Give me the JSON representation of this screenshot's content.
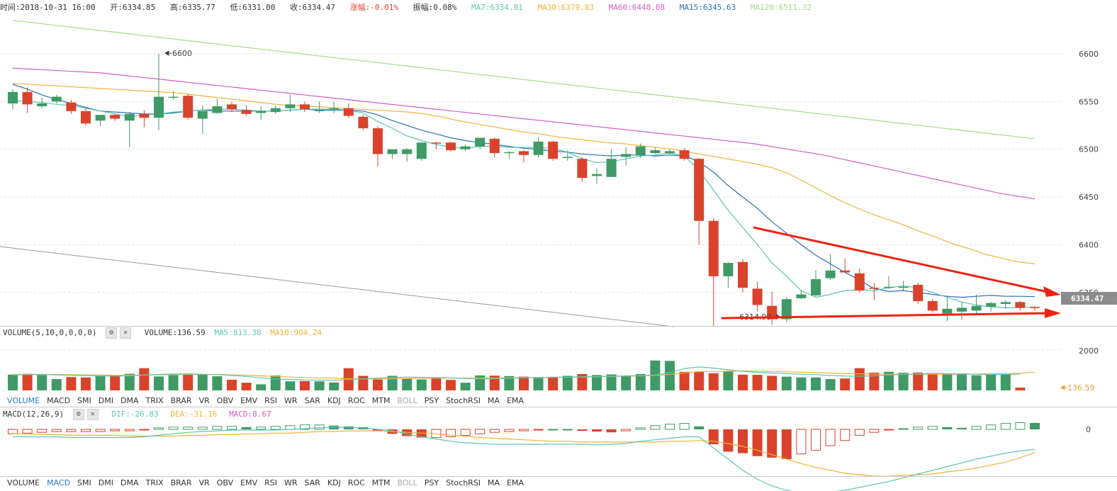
{
  "info": {
    "time": "时间:2018-10-31 16:00",
    "open": "开:6334.85",
    "high": "高:6335.77",
    "low": "低:6331.00",
    "close": "收:6334.47",
    "change": "涨幅:-0.01%",
    "amplitude": "振幅:0.08%",
    "ma7": "MA7:6334.81",
    "ma30": "MA30:6379.83",
    "ma60": "MA60:6448.08",
    "ma15": "MA15:6345.63",
    "ma120": "MA120:6511.32"
  },
  "colors": {
    "up": "#3f9a65",
    "down": "#d9432c",
    "ma7": "#5bc6b4",
    "ma15": "#2e6fb0",
    "ma30": "#f0b23a",
    "ma60": "#d45fbd",
    "ma120": "#a9d78f",
    "annotation": "#ee2211"
  },
  "price_axis": {
    "ticks": [
      "6600",
      "6550",
      "6500",
      "6450",
      "6400",
      "6350"
    ],
    "current": "6334.47"
  },
  "annotations": {
    "high": "6600",
    "low": "6314.99"
  },
  "volume": {
    "header": "VOLUME(5,10,0,0,0,0)",
    "value": "VOLUME:136.59",
    "ma5": "MA5:813.38",
    "ma10": "MA10:904.24",
    "tick": "2000",
    "current": "136.59"
  },
  "macd": {
    "header": "MACD(12,26,9)",
    "dif": "DIF:-26.83",
    "dea": "DEA:-31.16",
    "macd": "MACD:8.67",
    "tick": "0"
  },
  "tabs_volume": [
    "VOLUME",
    "MACD",
    "SMI",
    "DMI",
    "DMA",
    "TRIX",
    "BRAR",
    "VR",
    "OBV",
    "EMV",
    "RSI",
    "WR",
    "SAR",
    "KDJ",
    "ROC",
    "MTM",
    "BOLL",
    "PSY",
    "StochRSI",
    "MA",
    "EMA"
  ],
  "tabs_macd": [
    "VOLUME",
    "MACD",
    "SMI",
    "DMI",
    "DMA",
    "TRIX",
    "BRAR",
    "VR",
    "OBV",
    "EMV",
    "RSI",
    "WR",
    "SAR",
    "KDJ",
    "ROC",
    "MTM",
    "BOLL",
    "PSY",
    "StochRSI",
    "MA",
    "EMA"
  ],
  "chart_data": {
    "type": "candlestick",
    "ylim": [
      6315,
      6640
    ],
    "candles": [
      {
        "o": 6548,
        "h": 6563,
        "l": 6542,
        "c": 6560
      },
      {
        "o": 6560,
        "h": 6565,
        "l": 6538,
        "c": 6547
      },
      {
        "o": 6545,
        "h": 6554,
        "l": 6543,
        "c": 6548
      },
      {
        "o": 6550,
        "h": 6557,
        "l": 6548,
        "c": 6555
      },
      {
        "o": 6549,
        "h": 6552,
        "l": 6537,
        "c": 6540
      },
      {
        "o": 6540,
        "h": 6543,
        "l": 6525,
        "c": 6527
      },
      {
        "o": 6530,
        "h": 6536,
        "l": 6524,
        "c": 6536
      },
      {
        "o": 6536,
        "h": 6537,
        "l": 6530,
        "c": 6532
      },
      {
        "o": 6530,
        "h": 6539,
        "l": 6502,
        "c": 6537
      },
      {
        "o": 6537,
        "h": 6541,
        "l": 6523,
        "c": 6533
      },
      {
        "o": 6533,
        "h": 6600,
        "l": 6520,
        "c": 6555
      },
      {
        "o": 6555,
        "h": 6561,
        "l": 6552,
        "c": 6555
      },
      {
        "o": 6556,
        "h": 6558,
        "l": 6531,
        "c": 6533
      },
      {
        "o": 6532,
        "h": 6546,
        "l": 6516,
        "c": 6540
      },
      {
        "o": 6538,
        "h": 6553,
        "l": 6537,
        "c": 6545
      },
      {
        "o": 6547,
        "h": 6550,
        "l": 6539,
        "c": 6542
      },
      {
        "o": 6541,
        "h": 6546,
        "l": 6535,
        "c": 6537
      },
      {
        "o": 6538,
        "h": 6545,
        "l": 6531,
        "c": 6540
      },
      {
        "o": 6539,
        "h": 6546,
        "l": 6537,
        "c": 6543
      },
      {
        "o": 6543,
        "h": 6557,
        "l": 6539,
        "c": 6547
      },
      {
        "o": 6547,
        "h": 6550,
        "l": 6539,
        "c": 6542
      },
      {
        "o": 6540,
        "h": 6550,
        "l": 6538,
        "c": 6541
      },
      {
        "o": 6542,
        "h": 6550,
        "l": 6538,
        "c": 6543
      },
      {
        "o": 6543,
        "h": 6548,
        "l": 6533,
        "c": 6535
      },
      {
        "o": 6534,
        "h": 6536,
        "l": 6520,
        "c": 6522
      },
      {
        "o": 6522,
        "h": 6524,
        "l": 6482,
        "c": 6495
      },
      {
        "o": 6495,
        "h": 6500,
        "l": 6490,
        "c": 6500
      },
      {
        "o": 6495,
        "h": 6501,
        "l": 6487,
        "c": 6500
      },
      {
        "o": 6490,
        "h": 6507,
        "l": 6488,
        "c": 6507
      },
      {
        "o": 6507,
        "h": 6508,
        "l": 6500,
        "c": 6506
      },
      {
        "o": 6507,
        "h": 6508,
        "l": 6498,
        "c": 6499
      },
      {
        "o": 6500,
        "h": 6505,
        "l": 6498,
        "c": 6503
      },
      {
        "o": 6503,
        "h": 6512,
        "l": 6500,
        "c": 6512
      },
      {
        "o": 6511,
        "h": 6512,
        "l": 6492,
        "c": 6496
      },
      {
        "o": 6496,
        "h": 6498,
        "l": 6490,
        "c": 6497
      },
      {
        "o": 6498,
        "h": 6499,
        "l": 6486,
        "c": 6494
      },
      {
        "o": 6494,
        "h": 6513,
        "l": 6491,
        "c": 6508
      },
      {
        "o": 6508,
        "h": 6509,
        "l": 6488,
        "c": 6490
      },
      {
        "o": 6491,
        "h": 6499,
        "l": 6488,
        "c": 6492
      },
      {
        "o": 6490,
        "h": 6492,
        "l": 6466,
        "c": 6470
      },
      {
        "o": 6472,
        "h": 6480,
        "l": 6464,
        "c": 6474
      },
      {
        "o": 6471,
        "h": 6500,
        "l": 6471,
        "c": 6490
      },
      {
        "o": 6492,
        "h": 6502,
        "l": 6483,
        "c": 6495
      },
      {
        "o": 6494,
        "h": 6506,
        "l": 6491,
        "c": 6503
      },
      {
        "o": 6496,
        "h": 6502,
        "l": 6495,
        "c": 6499
      },
      {
        "o": 6496,
        "h": 6500,
        "l": 6494,
        "c": 6498
      },
      {
        "o": 6499,
        "h": 6501,
        "l": 6488,
        "c": 6490
      },
      {
        "o": 6490,
        "h": 6491,
        "l": 6400,
        "c": 6425
      },
      {
        "o": 6425,
        "h": 6428,
        "l": 6315,
        "c": 6367
      },
      {
        "o": 6367,
        "h": 6382,
        "l": 6355,
        "c": 6381
      },
      {
        "o": 6382,
        "h": 6385,
        "l": 6350,
        "c": 6355
      },
      {
        "o": 6354,
        "h": 6361,
        "l": 6330,
        "c": 6337
      },
      {
        "o": 6336,
        "h": 6351,
        "l": 6316,
        "c": 6322
      },
      {
        "o": 6322,
        "h": 6345,
        "l": 6319,
        "c": 6343
      },
      {
        "o": 6344,
        "h": 6352,
        "l": 6343,
        "c": 6348
      },
      {
        "o": 6347,
        "h": 6373,
        "l": 6346,
        "c": 6364
      },
      {
        "o": 6365,
        "h": 6390,
        "l": 6363,
        "c": 6373
      },
      {
        "o": 6373,
        "h": 6386,
        "l": 6371,
        "c": 6371
      },
      {
        "o": 6370,
        "h": 6375,
        "l": 6350,
        "c": 6352
      },
      {
        "o": 6355,
        "h": 6360,
        "l": 6342,
        "c": 6354
      },
      {
        "o": 6356,
        "h": 6367,
        "l": 6354,
        "c": 6356
      },
      {
        "o": 6356,
        "h": 6362,
        "l": 6352,
        "c": 6356
      },
      {
        "o": 6358,
        "h": 6360,
        "l": 6338,
        "c": 6341
      },
      {
        "o": 6341,
        "h": 6343,
        "l": 6329,
        "c": 6331
      },
      {
        "o": 6328,
        "h": 6346,
        "l": 6320,
        "c": 6333
      },
      {
        "o": 6330,
        "h": 6340,
        "l": 6321,
        "c": 6334
      },
      {
        "o": 6331,
        "h": 6348,
        "l": 6328,
        "c": 6336
      },
      {
        "o": 6335,
        "h": 6340,
        "l": 6330,
        "c": 6339
      },
      {
        "o": 6338,
        "h": 6342,
        "l": 6333,
        "c": 6340
      },
      {
        "o": 6340,
        "h": 6341,
        "l": 6331,
        "c": 6334
      },
      {
        "o": 6334.85,
        "h": 6335.77,
        "l": 6331.0,
        "c": 6334.47
      }
    ],
    "ma7": [
      6551,
      6550,
      6549,
      6547,
      6546,
      6543,
      6540,
      6537,
      6534,
      6536,
      6537,
      6539,
      6540,
      6541,
      6542,
      6542,
      6541,
      6540,
      6540,
      6541,
      6542,
      6542,
      6542,
      6541,
      6538,
      6529,
      6522,
      6514,
      6509,
      6505,
      6502,
      6501,
      6503,
      6503,
      6502,
      6502,
      6502,
      6501,
      6497,
      6490,
      6486,
      6487,
      6490,
      6493,
      6494,
      6496,
      6493,
      6478,
      6457,
      6436,
      6418,
      6400,
      6381,
      6367,
      6352,
      6345,
      6348,
      6352,
      6353,
      6352,
      6355,
      6357,
      6355,
      6350,
      6345,
      6340,
      6337,
      6335,
      6334,
      6334,
      6334.81
    ],
    "ma15": [
      6568,
      6563,
      6557,
      6552,
      6548,
      6544,
      6540,
      6539,
      6538,
      6537,
      6537,
      6538,
      6540,
      6541,
      6540,
      6540,
      6540,
      6540,
      6540,
      6541,
      6542,
      6541,
      6541,
      6541,
      6540,
      6536,
      6530,
      6525,
      6520,
      6516,
      6512,
      6509,
      6507,
      6505,
      6503,
      6501,
      6500,
      6498,
      6497,
      6495,
      6494,
      6493,
      6494,
      6494,
      6493,
      6494,
      6493,
      6487,
      6476,
      6462,
      6450,
      6438,
      6424,
      6412,
      6400,
      6389,
      6380,
      6371,
      6363,
      6354,
      6351,
      6352,
      6350,
      6348,
      6346,
      6345,
      6346,
      6347,
      6346,
      6346,
      6345.63
    ],
    "ma30": [
      6569,
      6568,
      6567,
      6566,
      6565,
      6564,
      6563,
      6562,
      6561,
      6560,
      6559,
      6557,
      6555,
      6553,
      6551,
      6549,
      6547,
      6546,
      6545,
      6544,
      6543,
      6542,
      6541,
      6540,
      6539,
      6537,
      6534,
      6530,
      6527,
      6524,
      6521,
      6518,
      6516,
      6513,
      6511,
      6509,
      6507,
      6506,
      6504,
      6502,
      6500,
      6497,
      6494,
      6491,
      6488,
      6485,
      6481,
      6475,
      6466,
      6457,
      6448,
      6440,
      6433,
      6427,
      6421,
      6414,
      6408,
      6401,
      6396,
      6390,
      6386,
      6382,
      6380
    ],
    "ma60": [
      6585,
      6584,
      6583,
      6582,
      6581,
      6580,
      6578,
      6576,
      6574,
      6572,
      6570,
      6568,
      6566,
      6564,
      6562,
      6560,
      6558,
      6556,
      6554,
      6552,
      6550,
      6548,
      6546,
      6544,
      6542,
      6540,
      6538,
      6536,
      6534,
      6532,
      6530,
      6528,
      6526,
      6524,
      6522,
      6520,
      6518,
      6516,
      6514,
      6512,
      6510,
      6508,
      6506,
      6503,
      6500,
      6497,
      6494,
      6490,
      6486,
      6482,
      6478,
      6474,
      6470,
      6466,
      6462,
      6458,
      6454,
      6451,
      6448
    ],
    "ma120": [
      6635,
      6633,
      6631,
      6629,
      6627,
      6625,
      6623,
      6621,
      6619,
      6617,
      6615,
      6613,
      6611,
      6609,
      6607,
      6605,
      6603,
      6601,
      6599,
      6597,
      6595,
      6593,
      6591,
      6589,
      6587,
      6585,
      6583,
      6581,
      6579,
      6577,
      6575,
      6573,
      6571,
      6569,
      6567,
      6565,
      6563,
      6561,
      6559,
      6557,
      6555,
      6553,
      6551,
      6549,
      6547,
      6545,
      6543,
      6541,
      6539,
      6537,
      6535,
      6533,
      6531,
      6529,
      6527,
      6525,
      6523,
      6521,
      6519,
      6517,
      6515,
      6513,
      6511
    ],
    "volume": [
      780,
      820,
      760,
      560,
      660,
      640,
      700,
      740,
      820,
      1100,
      690,
      760,
      820,
      800,
      700,
      530,
      380,
      300,
      740,
      450,
      460,
      450,
      390,
      1100,
      720,
      540,
      720,
      580,
      540,
      610,
      520,
      380,
      740,
      730,
      710,
      680,
      610,
      670,
      720,
      810,
      760,
      790,
      720,
      810,
      1480,
      1460,
      920,
      910,
      850,
      940,
      780,
      770,
      720,
      680,
      640,
      640,
      560,
      590,
      1100,
      880,
      920,
      870,
      880,
      860,
      820,
      840,
      750,
      840,
      810,
      136.59
    ],
    "vol_ma5": [
      760,
      780,
      790,
      770,
      750,
      730,
      720,
      710,
      720,
      760,
      790,
      810,
      820,
      800,
      780,
      740,
      690,
      620,
      560,
      540,
      520,
      510,
      500,
      540,
      570,
      610,
      640,
      660,
      650,
      640,
      620,
      590,
      570,
      580,
      600,
      620,
      640,
      650,
      650,
      670,
      680,
      700,
      720,
      730,
      760,
      880,
      1080,
      1160,
      1100,
      1020,
      940,
      890,
      860,
      830,
      800,
      780,
      740,
      710,
      700,
      720,
      760,
      790,
      820,
      840,
      830,
      810,
      800,
      790,
      790,
      813.38
    ],
    "vol_ma10": [
      790,
      790,
      790,
      790,
      780,
      770,
      760,
      750,
      750,
      760,
      770,
      780,
      790,
      790,
      790,
      770,
      750,
      720,
      690,
      660,
      640,
      620,
      600,
      580,
      570,
      570,
      580,
      590,
      600,
      610,
      610,
      610,
      610,
      610,
      620,
      630,
      640,
      650,
      650,
      660,
      670,
      690,
      710,
      720,
      740,
      790,
      870,
      930,
      940,
      950,
      960,
      950,
      940,
      920,
      900,
      880,
      860,
      840,
      820,
      810,
      800,
      800,
      800,
      800,
      800,
      800,
      810,
      820,
      830,
      850,
      904.24
    ],
    "macd_hist": [
      -6,
      -5,
      -4,
      -3,
      -3,
      -3,
      -3,
      -2,
      -2,
      -1,
      2,
      3,
      3,
      3,
      4,
      4,
      3,
      3,
      4,
      5,
      6,
      6,
      5,
      4,
      3,
      -2,
      -6,
      -9,
      -11,
      -11,
      -10,
      -8,
      -6,
      -4,
      -3,
      -2,
      -1,
      0,
      0,
      -2,
      -3,
      -4,
      -2,
      2,
      5,
      7,
      8,
      4,
      -20,
      -30,
      -32,
      -36,
      -38,
      -40,
      -33,
      -28,
      -22,
      -15,
      -8,
      -4,
      -1,
      1,
      3,
      4,
      3,
      2,
      4,
      6,
      8,
      9,
      8.67
    ],
    "macd_dif": [
      -10,
      -10,
      -10,
      -10,
      -11,
      -11,
      -11,
      -11,
      -11,
      -10,
      -8,
      -6,
      -4,
      -3,
      -2,
      -1,
      -1,
      -1,
      -1,
      0,
      1,
      2,
      3,
      3,
      2,
      0,
      -2,
      -6,
      -10,
      -13,
      -16,
      -18,
      -19,
      -20,
      -20,
      -20,
      -20,
      -20,
      -20,
      -20,
      -21,
      -20,
      -19,
      -16,
      -14,
      -12,
      -10,
      -10,
      -25,
      -40,
      -55,
      -67,
      -76,
      -82,
      -85,
      -85,
      -84,
      -82,
      -78,
      -74,
      -70,
      -65,
      -60,
      -55,
      -50,
      -45,
      -40,
      -36,
      -32,
      -29,
      -26.83
    ],
    "macd_dea": [
      -6,
      -6,
      -7,
      -7,
      -8,
      -8,
      -8,
      -8,
      -9,
      -9,
      -9,
      -9,
      -8,
      -8,
      -7,
      -7,
      -6,
      -6,
      -5,
      -5,
      -4,
      -3,
      -3,
      -2,
      -2,
      -2,
      -3,
      -4,
      -5,
      -6,
      -8,
      -9,
      -11,
      -12,
      -13,
      -14,
      -15,
      -16,
      -16,
      -17,
      -17,
      -17,
      -17,
      -17,
      -17,
      -16,
      -16,
      -15,
      -16,
      -19,
      -23,
      -28,
      -34,
      -40,
      -46,
      -51,
      -55,
      -59,
      -61,
      -63,
      -63,
      -62,
      -61,
      -60,
      -57,
      -55,
      -52,
      -48,
      -44,
      -38,
      -31.16
    ]
  }
}
